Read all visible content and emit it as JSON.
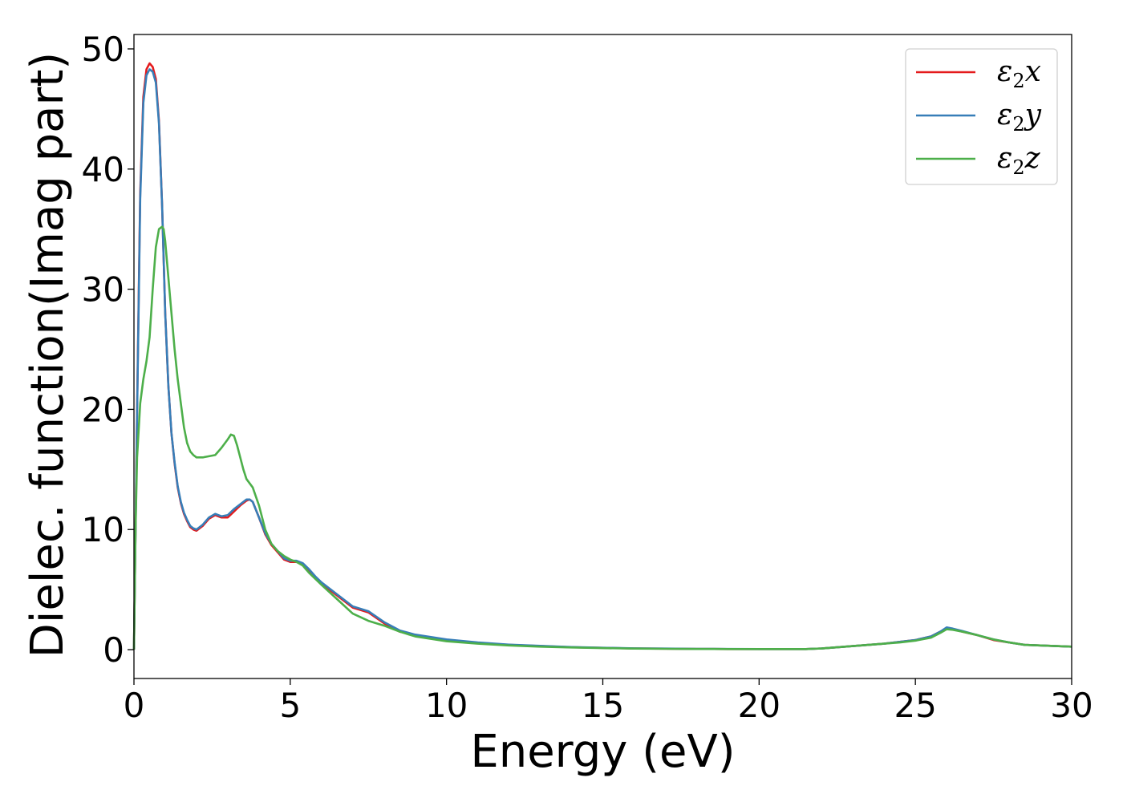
{
  "chart_data": {
    "type": "line",
    "xlabel": "Energy (eV)",
    "ylabel": "Dielec. function(Imag part)",
    "xlim": [
      0,
      30
    ],
    "ylim": [
      -2.4,
      51.2
    ],
    "x_ticks": [
      0,
      5,
      10,
      15,
      20,
      25,
      30
    ],
    "y_ticks": [
      0,
      10,
      20,
      30,
      40,
      50
    ],
    "grid": false,
    "legend_position": "top-right",
    "series": [
      {
        "name": "ε2x",
        "label_base": "ε",
        "label_sub": "2",
        "label_var": "x",
        "color": "#e41a1c",
        "x": [
          0,
          0.1,
          0.2,
          0.3,
          0.4,
          0.5,
          0.6,
          0.7,
          0.8,
          0.9,
          1.0,
          1.1,
          1.2,
          1.3,
          1.4,
          1.5,
          1.6,
          1.7,
          1.8,
          1.9,
          2.0,
          2.2,
          2.4,
          2.6,
          2.8,
          3.0,
          3.2,
          3.4,
          3.6,
          3.7,
          3.8,
          4.0,
          4.2,
          4.4,
          4.6,
          4.8,
          5.0,
          5.2,
          5.4,
          5.6,
          5.8,
          6.0,
          6.5,
          7.0,
          7.5,
          8.0,
          8.5,
          9.0,
          9.5,
          10,
          11,
          12,
          13,
          14,
          15,
          16,
          17,
          18,
          19,
          20,
          21,
          21.5,
          22,
          22.5,
          23,
          23.5,
          24,
          24.5,
          25,
          25.5,
          25.8,
          26.0,
          26.2,
          26.5,
          27,
          27.5,
          28,
          28.5,
          29,
          29.5,
          30
        ],
        "values": [
          0,
          20,
          38,
          46,
          48.3,
          48.8,
          48.5,
          47.5,
          44,
          37,
          28,
          22,
          18,
          15.5,
          13.5,
          12.2,
          11.3,
          10.7,
          10.2,
          10,
          9.9,
          10.3,
          10.9,
          11.2,
          11,
          11,
          11.5,
          12,
          12.4,
          12.5,
          12.3,
          11,
          9.6,
          8.7,
          8.1,
          7.5,
          7.3,
          7.3,
          7.1,
          6.6,
          6,
          5.5,
          4.5,
          3.5,
          3.1,
          2.2,
          1.5,
          1.2,
          1.0,
          0.8,
          0.55,
          0.4,
          0.3,
          0.2,
          0.15,
          0.1,
          0.08,
          0.06,
          0.05,
          0.05,
          0.05,
          0.05,
          0.1,
          0.2,
          0.3,
          0.4,
          0.5,
          0.65,
          0.8,
          1.1,
          1.5,
          1.8,
          1.7,
          1.5,
          1.2,
          0.8,
          0.6,
          0.4,
          0.35,
          0.3,
          0.25
        ]
      },
      {
        "name": "ε2y",
        "label_base": "ε",
        "label_sub": "2",
        "label_var": "y",
        "color": "#377eb8",
        "x": [
          0,
          0.1,
          0.2,
          0.3,
          0.4,
          0.5,
          0.6,
          0.7,
          0.8,
          0.9,
          1.0,
          1.1,
          1.2,
          1.3,
          1.4,
          1.5,
          1.6,
          1.7,
          1.8,
          1.9,
          2.0,
          2.2,
          2.4,
          2.6,
          2.8,
          3.0,
          3.2,
          3.4,
          3.6,
          3.7,
          3.8,
          4.0,
          4.2,
          4.4,
          4.6,
          4.8,
          5.0,
          5.2,
          5.4,
          5.6,
          5.8,
          6.0,
          6.5,
          7.0,
          7.5,
          8.0,
          8.5,
          9.0,
          9.5,
          10,
          11,
          12,
          13,
          14,
          15,
          16,
          17,
          18,
          19,
          20,
          21,
          21.5,
          22,
          22.5,
          23,
          23.5,
          24,
          24.5,
          25,
          25.5,
          25.8,
          26.0,
          26.2,
          26.5,
          27,
          27.5,
          28,
          28.5,
          29,
          29.5,
          30
        ],
        "values": [
          0,
          19.5,
          37.5,
          45.5,
          47.8,
          48.3,
          48.1,
          47.2,
          43.8,
          37,
          28,
          22,
          18,
          15.6,
          13.6,
          12.3,
          11.4,
          10.8,
          10.3,
          10.1,
          10.0,
          10.4,
          11.0,
          11.3,
          11.1,
          11.2,
          11.7,
          12.1,
          12.5,
          12.5,
          12.3,
          11,
          9.7,
          8.8,
          8.2,
          7.6,
          7.4,
          7.4,
          7.2,
          6.7,
          6.1,
          5.6,
          4.6,
          3.6,
          3.2,
          2.3,
          1.6,
          1.25,
          1.05,
          0.85,
          0.6,
          0.42,
          0.32,
          0.22,
          0.16,
          0.11,
          0.09,
          0.07,
          0.06,
          0.05,
          0.05,
          0.05,
          0.1,
          0.2,
          0.3,
          0.4,
          0.5,
          0.65,
          0.8,
          1.1,
          1.5,
          1.85,
          1.75,
          1.55,
          1.2,
          0.85,
          0.6,
          0.4,
          0.35,
          0.3,
          0.25
        ]
      },
      {
        "name": "ε2z",
        "label_base": "ε",
        "label_sub": "2",
        "label_var": "z",
        "color": "#4daf4a",
        "x": [
          0,
          0.05,
          0.1,
          0.2,
          0.3,
          0.4,
          0.5,
          0.6,
          0.7,
          0.8,
          0.9,
          0.95,
          1.0,
          1.1,
          1.2,
          1.3,
          1.4,
          1.5,
          1.6,
          1.7,
          1.8,
          1.9,
          2.0,
          2.2,
          2.4,
          2.6,
          2.8,
          3.0,
          3.1,
          3.2,
          3.3,
          3.4,
          3.5,
          3.6,
          3.8,
          4.0,
          4.2,
          4.4,
          4.6,
          4.8,
          5.0,
          5.2,
          5.4,
          5.6,
          5.8,
          6.0,
          6.5,
          7.0,
          7.5,
          8.0,
          8.5,
          9.0,
          9.5,
          10,
          11,
          12,
          13,
          14,
          15,
          16,
          17,
          18,
          19,
          20,
          21,
          21.5,
          22,
          22.5,
          23,
          23.5,
          24,
          24.5,
          25,
          25.5,
          25.8,
          26.0,
          26.2,
          26.5,
          27,
          27.5,
          28,
          28.5,
          29,
          29.5,
          30
        ],
        "values": [
          0,
          10,
          16,
          20.5,
          22.5,
          24,
          26,
          30,
          33.5,
          35,
          35.2,
          35,
          34,
          31,
          28,
          25,
          22.5,
          20.5,
          18.5,
          17.2,
          16.5,
          16.2,
          16.0,
          16.0,
          16.1,
          16.2,
          16.8,
          17.5,
          17.9,
          17.8,
          17.0,
          16,
          15,
          14.2,
          13.5,
          12,
          10,
          8.8,
          8.2,
          7.8,
          7.5,
          7.3,
          7,
          6.4,
          5.9,
          5.4,
          4.2,
          3.0,
          2.4,
          2.0,
          1.5,
          1.1,
          0.9,
          0.7,
          0.5,
          0.35,
          0.25,
          0.18,
          0.13,
          0.09,
          0.07,
          0.06,
          0.05,
          0.05,
          0.05,
          0.05,
          0.1,
          0.2,
          0.3,
          0.4,
          0.5,
          0.6,
          0.75,
          1.0,
          1.4,
          1.7,
          1.65,
          1.5,
          1.2,
          0.85,
          0.6,
          0.4,
          0.35,
          0.3,
          0.25
        ]
      }
    ]
  }
}
